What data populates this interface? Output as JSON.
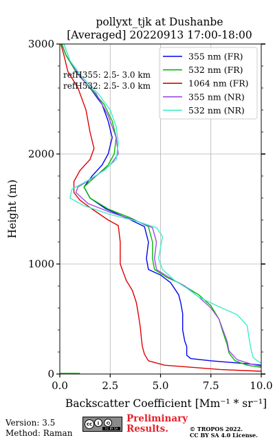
{
  "title_line1": "pollyxt_tjk at Dushanbe",
  "title_line2": "[Averaged] 20220913 17:00-18:00",
  "ref_lines": [
    "refH355:  2.5- 3.0 km",
    "refH532:  2.5- 3.0 km"
  ],
  "footer": {
    "version": "Version: 3.5",
    "method": "Method: Raman",
    "preliminary_line1": "Preliminary",
    "preliminary_line2": "Results.",
    "copyright_line1": "© TROPOS 2022.",
    "copyright_line2": "CC BY SA 4.0 License.",
    "license_badge": "CC BY SA"
  },
  "chart_data": {
    "type": "line",
    "title": "pollyxt_tjk at Dushanbe [Averaged] 20220913 17:00-18:00",
    "xlabel": "Backscatter Coefficient [Mm⁻¹ * sr⁻¹]",
    "ylabel": "Height (m)",
    "xlim": [
      0,
      10
    ],
    "ylim": [
      0,
      3000
    ],
    "xticks": [
      "0.0",
      "2.5",
      "5.0",
      "7.5",
      "10.0"
    ],
    "yticks": [
      "0",
      "1000",
      "2000",
      "3000"
    ],
    "grid": true,
    "legend_position": "top-right",
    "series": [
      {
        "name": "355 nm (FR)",
        "color": "#0000ee",
        "points": [
          [
            0.1,
            3000
          ],
          [
            0.3,
            2900
          ],
          [
            0.8,
            2750
          ],
          [
            1.5,
            2600
          ],
          [
            2.1,
            2450
          ],
          [
            2.4,
            2300
          ],
          [
            2.6,
            2150
          ],
          [
            2.4,
            2000
          ],
          [
            2.1,
            1900
          ],
          [
            1.6,
            1800
          ],
          [
            1.2,
            1700
          ],
          [
            1.5,
            1600
          ],
          [
            2.3,
            1500
          ],
          [
            3.3,
            1420
          ],
          [
            4.2,
            1340
          ],
          [
            4.4,
            1200
          ],
          [
            4.3,
            1050
          ],
          [
            4.4,
            950
          ],
          [
            5.0,
            900
          ],
          [
            5.5,
            830
          ],
          [
            5.9,
            720
          ],
          [
            6.0,
            650
          ],
          [
            6.1,
            550
          ],
          [
            6.1,
            400
          ],
          [
            6.2,
            300
          ],
          [
            6.3,
            250
          ],
          [
            6.3,
            170
          ],
          [
            6.5,
            140
          ],
          [
            7.5,
            120
          ],
          [
            9.5,
            90
          ],
          [
            10.0,
            80
          ]
        ]
      },
      {
        "name": "532 nm (FR)",
        "color": "#00bb00",
        "points": [
          [
            0.1,
            3000
          ],
          [
            0.3,
            2900
          ],
          [
            0.8,
            2750
          ],
          [
            1.5,
            2600
          ],
          [
            2.2,
            2450
          ],
          [
            2.6,
            2300
          ],
          [
            2.8,
            2150
          ],
          [
            2.7,
            2000
          ],
          [
            2.4,
            1900
          ],
          [
            1.8,
            1800
          ],
          [
            1.2,
            1700
          ],
          [
            1.5,
            1600
          ],
          [
            2.4,
            1500
          ],
          [
            3.5,
            1420
          ],
          [
            4.4,
            1340
          ],
          [
            4.6,
            1200
          ],
          [
            4.6,
            1050
          ],
          [
            4.7,
            950
          ],
          [
            5.3,
            880
          ],
          [
            6.0,
            820
          ],
          [
            6.9,
            720
          ],
          [
            7.5,
            620
          ],
          [
            7.9,
            500
          ],
          [
            8.1,
            380
          ],
          [
            8.3,
            270
          ],
          [
            8.4,
            190
          ],
          [
            8.7,
            120
          ],
          [
            9.3,
            80
          ],
          [
            10.0,
            60
          ]
        ]
      },
      {
        "name": "1064 nm (FR)",
        "color": "#dd0000",
        "points": [
          [
            0.05,
            3000
          ],
          [
            0.2,
            2900
          ],
          [
            0.4,
            2750
          ],
          [
            0.9,
            2600
          ],
          [
            1.3,
            2400
          ],
          [
            1.5,
            2200
          ],
          [
            1.7,
            2050
          ],
          [
            1.5,
            1950
          ],
          [
            1.0,
            1850
          ],
          [
            0.7,
            1750
          ],
          [
            0.7,
            1650
          ],
          [
            1.0,
            1580
          ],
          [
            1.6,
            1500
          ],
          [
            2.4,
            1400
          ],
          [
            2.9,
            1350
          ],
          [
            3.0,
            1200
          ],
          [
            3.0,
            1060
          ],
          [
            3.0,
            1000
          ],
          [
            3.1,
            950
          ],
          [
            3.3,
            850
          ],
          [
            3.6,
            760
          ],
          [
            3.8,
            650
          ],
          [
            3.9,
            540
          ],
          [
            4.0,
            420
          ],
          [
            4.05,
            320
          ],
          [
            4.1,
            250
          ],
          [
            4.2,
            180
          ],
          [
            4.4,
            120
          ],
          [
            5.2,
            80
          ],
          [
            8.0,
            40
          ],
          [
            10.0,
            25
          ]
        ]
      },
      {
        "name": "355 nm (NR)",
        "color": "#9b4de0",
        "points": [
          [
            0.2,
            3000
          ],
          [
            0.5,
            2850
          ],
          [
            1.0,
            2700
          ],
          [
            1.8,
            2550
          ],
          [
            2.4,
            2350
          ],
          [
            2.8,
            2150
          ],
          [
            2.9,
            2000
          ],
          [
            2.5,
            1900
          ],
          [
            1.8,
            1800
          ],
          [
            0.9,
            1700
          ],
          [
            0.8,
            1650
          ],
          [
            1.4,
            1550
          ],
          [
            2.5,
            1470
          ],
          [
            3.7,
            1400
          ],
          [
            4.6,
            1330
          ],
          [
            4.8,
            1200
          ],
          [
            4.7,
            1050
          ],
          [
            4.8,
            950
          ],
          [
            5.4,
            880
          ],
          [
            6.2,
            800
          ],
          [
            6.9,
            700
          ],
          [
            7.5,
            600
          ],
          [
            7.9,
            500
          ],
          [
            8.1,
            400
          ],
          [
            8.3,
            300
          ],
          [
            8.4,
            210
          ],
          [
            8.8,
            130
          ],
          [
            9.5,
            90
          ],
          [
            10.0,
            70
          ]
        ]
      },
      {
        "name": "532 nm (NR)",
        "color": "#40ecc8",
        "points": [
          [
            0.2,
            3000
          ],
          [
            0.5,
            2850
          ],
          [
            1.1,
            2700
          ],
          [
            1.9,
            2550
          ],
          [
            2.5,
            2400
          ],
          [
            2.8,
            2250
          ],
          [
            2.9,
            2100
          ],
          [
            2.8,
            1950
          ],
          [
            2.2,
            1850
          ],
          [
            1.3,
            1750
          ],
          [
            0.6,
            1680
          ],
          [
            0.5,
            1600
          ],
          [
            1.2,
            1530
          ],
          [
            2.5,
            1450
          ],
          [
            3.8,
            1390
          ],
          [
            4.8,
            1330
          ],
          [
            5.1,
            1250
          ],
          [
            5.0,
            1150
          ],
          [
            4.9,
            1050
          ],
          [
            5.1,
            950
          ],
          [
            5.7,
            850
          ],
          [
            6.3,
            780
          ],
          [
            6.9,
            700
          ],
          [
            7.8,
            620
          ],
          [
            8.8,
            540
          ],
          [
            9.3,
            440
          ],
          [
            9.4,
            320
          ],
          [
            9.5,
            220
          ],
          [
            9.6,
            150
          ],
          [
            9.8,
            120
          ],
          [
            10.0,
            100
          ]
        ]
      }
    ]
  }
}
